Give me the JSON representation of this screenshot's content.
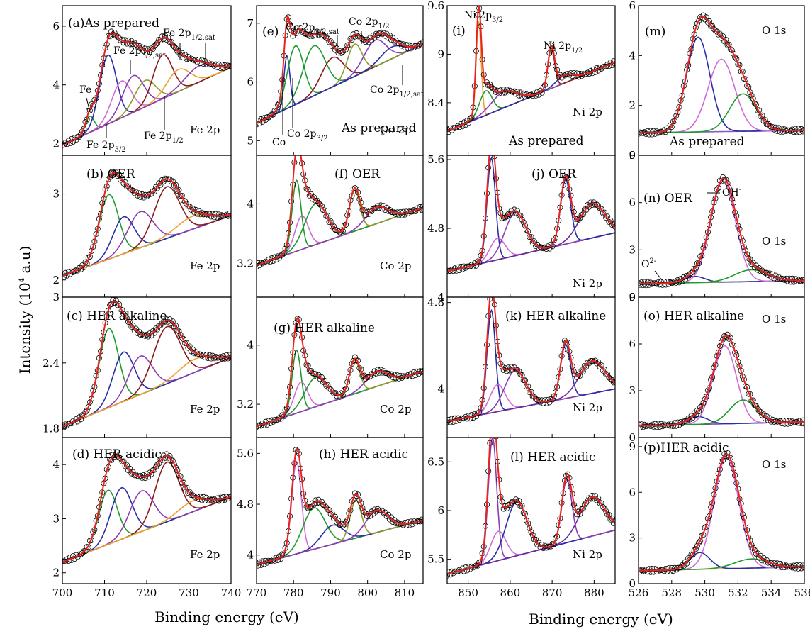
{
  "figure": {
    "ylabel": "Intensity (10",
    "ylabel_sup": "4",
    "ylabel_tail": " a.u)",
    "xlabel_left": "Binding energy (eV)",
    "xlabel_right": "Binding energy (eV)"
  },
  "colors": {
    "data": "#000000",
    "fit": "#e8231f",
    "background": [
      "#f5a623",
      "#3b3fae",
      "#8b5cc2",
      "#6b8e3d",
      "#7a3fb0"
    ],
    "components": [
      "#1f9a2e",
      "#2a2ea6",
      "#8a3db3",
      "#8b1a1a",
      "#f0a030",
      "#d06bd6",
      "#8f9a2a",
      "#6a2b9a"
    ]
  },
  "chart_data": [
    {
      "id": "a",
      "type": "line",
      "title": "(a)As prepared",
      "element": "Fe 2p",
      "xlim": [
        700,
        740
      ],
      "ylim": [
        1.6,
        6.7
      ],
      "xticks": [
        700,
        710,
        720,
        730,
        740
      ],
      "yticks": [
        2,
        4,
        6
      ],
      "baseline": [
        1.95,
        4.6
      ],
      "peaks": [
        {
          "c": 706.5,
          "a": 0.55,
          "w": 1.0
        },
        {
          "c": 710.8,
          "a": 2.35,
          "w": 2.0
        },
        {
          "c": 714.0,
          "a": 1.25,
          "w": 2.3
        },
        {
          "c": 716.8,
          "a": 1.25,
          "w": 2.5
        },
        {
          "c": 719.6,
          "a": 0.9,
          "w": 2.5
        },
        {
          "c": 723.8,
          "a": 1.5,
          "w": 2.3
        },
        {
          "c": 727.5,
          "a": 0.75,
          "w": 2.8
        },
        {
          "c": 732.5,
          "a": 0.55,
          "w": 3.5
        }
      ],
      "colors": [
        0,
        1,
        5,
        2,
        6,
        3,
        4,
        2
      ]
    },
    {
      "id": "b",
      "type": "line",
      "title": "(b) OER",
      "element": "Fe 2p",
      "xlim": [
        700,
        740
      ],
      "ylim": [
        1.8,
        3.45
      ],
      "xticks": [
        700,
        710,
        720,
        730,
        740
      ],
      "yticks": [
        2,
        3
      ],
      "baseline": [
        2.05,
        2.75
      ],
      "peaks": [
        {
          "c": 711.0,
          "a": 0.75,
          "w": 2.3
        },
        {
          "c": 714.5,
          "a": 0.43,
          "w": 2.5
        },
        {
          "c": 718.5,
          "a": 0.42,
          "w": 3.0
        },
        {
          "c": 724.8,
          "a": 0.6,
          "w": 3.0
        },
        {
          "c": 731.0,
          "a": 0.15,
          "w": 4.0
        }
      ],
      "colors": [
        0,
        1,
        2,
        3,
        4
      ]
    },
    {
      "id": "c",
      "type": "line",
      "title": "(c) HER alkaline",
      "element": "Fe 2p",
      "xlim": [
        700,
        740
      ],
      "ylim": [
        1.72,
        3.0
      ],
      "xticks": [
        700,
        710,
        720,
        730,
        740
      ],
      "yticks": [
        1.8,
        2.4,
        3.0
      ],
      "baseline": [
        1.82,
        2.45
      ],
      "peaks": [
        {
          "c": 711.0,
          "a": 0.72,
          "w": 2.3
        },
        {
          "c": 714.5,
          "a": 0.45,
          "w": 2.5
        },
        {
          "c": 718.5,
          "a": 0.35,
          "w": 2.8
        },
        {
          "c": 724.8,
          "a": 0.52,
          "w": 3.2
        },
        {
          "c": 731.5,
          "a": 0.12,
          "w": 4.0
        }
      ],
      "colors": [
        0,
        1,
        2,
        3,
        4
      ]
    },
    {
      "id": "d",
      "type": "line",
      "title": "(d) HER acidic",
      "element": "Fe 2p",
      "xlim": [
        700,
        740
      ],
      "ylim": [
        1.8,
        4.5
      ],
      "xticks": [
        700,
        710,
        720,
        730,
        740
      ],
      "yticks": [
        2,
        3,
        4
      ],
      "baseline": [
        2.2,
        3.4
      ],
      "peaks": [
        {
          "c": 710.8,
          "a": 1.0,
          "w": 2.2
        },
        {
          "c": 714.0,
          "a": 0.95,
          "w": 2.5
        },
        {
          "c": 718.8,
          "a": 0.75,
          "w": 2.8
        },
        {
          "c": 724.8,
          "a": 1.1,
          "w": 2.8
        },
        {
          "c": 731.0,
          "a": 0.2,
          "w": 3.5
        }
      ],
      "colors": [
        0,
        1,
        2,
        3,
        4
      ]
    },
    {
      "id": "e",
      "type": "line",
      "title": "(e)",
      "element": "Co 2p",
      "xlim": [
        770,
        815
      ],
      "ylim": [
        4.75,
        7.3
      ],
      "xticks": [
        770,
        780,
        790,
        800,
        810
      ],
      "yticks": [
        5,
        6,
        7
      ],
      "baseline": [
        5.3,
        6.65
      ],
      "peaks": [
        {
          "c": 778.2,
          "a": 0.9,
          "w": 0.8
        },
        {
          "c": 780.5,
          "a": 1.0,
          "w": 2.2
        },
        {
          "c": 785.5,
          "a": 0.85,
          "w": 3.0
        },
        {
          "c": 790.5,
          "a": 0.5,
          "w": 3.0
        },
        {
          "c": 796.5,
          "a": 0.55,
          "w": 2.0
        },
        {
          "c": 802.0,
          "a": 0.45,
          "w": 3.0
        },
        {
          "c": 806.5,
          "a": 0.2,
          "w": 3.0
        }
      ],
      "colors": [
        1,
        0,
        0,
        3,
        6,
        2,
        1
      ]
    },
    {
      "id": "f",
      "type": "line",
      "title": "(f) OER",
      "element": "Co 2p",
      "xlim": [
        770,
        815
      ],
      "ylim": [
        2.75,
        4.65
      ],
      "xticks": [
        770,
        780,
        790,
        800,
        810
      ],
      "yticks": [
        3.2,
        4.0
      ],
      "baseline": [
        3.18,
        3.95
      ],
      "peaks": [
        {
          "c": 780.8,
          "a": 0.95,
          "w": 1.2
        },
        {
          "c": 782.2,
          "a": 0.45,
          "w": 1.8
        },
        {
          "c": 786.0,
          "a": 0.55,
          "w": 3.0
        },
        {
          "c": 796.5,
          "a": 0.55,
          "w": 1.4
        },
        {
          "c": 802.5,
          "a": 0.22,
          "w": 3.0
        }
      ],
      "colors": [
        0,
        5,
        0,
        6,
        2
      ]
    },
    {
      "id": "g",
      "type": "line",
      "title": "(g) HER alkaline",
      "element": "Co 2p",
      "xlim": [
        770,
        815
      ],
      "ylim": [
        2.75,
        4.65
      ],
      "xticks": [
        770,
        780,
        790,
        800,
        810
      ],
      "yticks": [
        3.2,
        4.0
      ],
      "baseline": [
        2.9,
        3.65
      ],
      "peaks": [
        {
          "c": 780.8,
          "a": 0.85,
          "w": 1.2
        },
        {
          "c": 782.0,
          "a": 0.4,
          "w": 1.8
        },
        {
          "c": 786.0,
          "a": 0.4,
          "w": 3.0
        },
        {
          "c": 796.5,
          "a": 0.45,
          "w": 1.4
        },
        {
          "c": 802.5,
          "a": 0.2,
          "w": 3.0
        }
      ],
      "colors": [
        0,
        5,
        0,
        6,
        2
      ]
    },
    {
      "id": "h",
      "type": "line",
      "title": "(h) HER acidic",
      "element": "Co 2p",
      "xlim": [
        770,
        815
      ],
      "ylim": [
        3.55,
        5.85
      ],
      "xticks": [
        770,
        780,
        790,
        800,
        810
      ],
      "yticks": [
        4.0,
        4.8,
        5.6
      ],
      "baseline": [
        3.85,
        4.55
      ],
      "peaks": [
        {
          "c": 780.8,
          "a": 1.45,
          "w": 1.3
        },
        {
          "c": 785.5,
          "a": 0.65,
          "w": 3.0
        },
        {
          "c": 790.5,
          "a": 0.3,
          "w": 3.0
        },
        {
          "c": 796.8,
          "a": 0.6,
          "w": 1.5
        },
        {
          "c": 802.5,
          "a": 0.35,
          "w": 3.0
        }
      ],
      "colors": [
        5,
        0,
        1,
        6,
        2
      ]
    },
    {
      "id": "i",
      "type": "line",
      "title": "(i)",
      "element": "Ni 2p",
      "xlim": [
        845,
        885
      ],
      "ylim": [
        7.75,
        9.6
      ],
      "xticks": [
        850,
        860,
        870,
        880
      ],
      "yticks": [
        8.4,
        9.0,
        9.6
      ],
      "baseline": [
        8.05,
        8.9
      ],
      "peaks": [
        {
          "c": 852.5,
          "a": 1.2,
          "w": 0.6
        },
        {
          "c": 854.2,
          "a": 0.3,
          "w": 1.5
        },
        {
          "c": 858.5,
          "a": 0.2,
          "w": 3.0
        },
        {
          "c": 869.8,
          "a": 0.5,
          "w": 0.8
        },
        {
          "c": 873.0,
          "a": 0.1,
          "w": 2.0
        }
      ],
      "colors": [
        4,
        0,
        2,
        3,
        1
      ]
    },
    {
      "id": "j",
      "type": "line",
      "title": "(j) OER",
      "element": "Ni 2p",
      "xlim": [
        845,
        885
      ],
      "ylim": [
        4.0,
        5.65
      ],
      "xticks": [
        850,
        860,
        870,
        880
      ],
      "yticks": [
        4.0,
        4.8,
        5.6
      ],
      "baseline": [
        4.3,
        4.75
      ],
      "peaks": [
        {
          "c": 855.5,
          "a": 1.2,
          "w": 1.0
        },
        {
          "c": 857.0,
          "a": 0.25,
          "w": 1.8
        },
        {
          "c": 861.2,
          "a": 0.5,
          "w": 2.5
        },
        {
          "c": 873.2,
          "a": 0.75,
          "w": 1.2
        },
        {
          "c": 879.5,
          "a": 0.4,
          "w": 3.0
        }
      ],
      "colors": [
        1,
        5,
        2,
        1,
        7
      ]
    },
    {
      "id": "k",
      "type": "line",
      "title": "(k) HER alkaline",
      "element": "Ni 2p",
      "xlim": [
        845,
        885
      ],
      "ylim": [
        3.55,
        4.85
      ],
      "xticks": [
        850,
        860,
        870,
        880
      ],
      "yticks": [
        4.0,
        4.8
      ],
      "baseline": [
        3.7,
        4.0
      ],
      "peaks": [
        {
          "c": 855.5,
          "a": 0.95,
          "w": 1.0
        },
        {
          "c": 857.0,
          "a": 0.25,
          "w": 1.8
        },
        {
          "c": 861.2,
          "a": 0.35,
          "w": 2.5
        },
        {
          "c": 873.2,
          "a": 0.5,
          "w": 1.2
        },
        {
          "c": 879.5,
          "a": 0.3,
          "w": 3.0
        }
      ],
      "colors": [
        1,
        5,
        2,
        1,
        7
      ]
    },
    {
      "id": "l",
      "type": "line",
      "title": "(l) HER acidic",
      "element": "Ni 2p",
      "xlim": [
        845,
        885
      ],
      "ylim": [
        5.25,
        6.75
      ],
      "xticks": [
        850,
        860,
        870,
        880
      ],
      "yticks": [
        5.5,
        6.0,
        6.5
      ],
      "baseline": [
        5.35,
        5.8
      ],
      "peaks": [
        {
          "c": 855.8,
          "a": 1.28,
          "w": 1.0
        },
        {
          "c": 857.2,
          "a": 0.3,
          "w": 1.8
        },
        {
          "c": 861.5,
          "a": 0.55,
          "w": 2.5
        },
        {
          "c": 873.5,
          "a": 0.65,
          "w": 1.2
        },
        {
          "c": 879.5,
          "a": 0.4,
          "w": 3.0
        }
      ],
      "colors": [
        2,
        5,
        1,
        2,
        7
      ]
    },
    {
      "id": "m",
      "type": "line",
      "title": "(m)",
      "element": "O 1s",
      "xlim": [
        526,
        536
      ],
      "ylim": [
        0,
        6
      ],
      "xticks": [
        526,
        528,
        530,
        532,
        534,
        536
      ],
      "yticks": [
        0,
        2,
        4,
        6
      ],
      "baseline": [
        0.9,
        1.0
      ],
      "peaks": [
        {
          "c": 529.6,
          "a": 3.8,
          "w": 0.7
        },
        {
          "c": 531.0,
          "a": 2.9,
          "w": 0.8
        },
        {
          "c": 532.3,
          "a": 1.5,
          "w": 0.8
        }
      ],
      "colors": [
        1,
        5,
        0
      ]
    },
    {
      "id": "n",
      "type": "line",
      "title": "(n) OER",
      "element": "O 1s",
      "xlim": [
        526,
        536
      ],
      "ylim": [
        0,
        9
      ],
      "xticks": [
        526,
        528,
        530,
        532,
        534,
        536
      ],
      "yticks": [
        0,
        3,
        6,
        9
      ],
      "baseline": [
        0.85,
        1.05
      ],
      "peaks": [
        {
          "c": 529.4,
          "a": 0.4,
          "w": 0.6
        },
        {
          "c": 531.1,
          "a": 6.4,
          "w": 0.75
        },
        {
          "c": 532.8,
          "a": 0.75,
          "w": 1.0
        }
      ],
      "colors": [
        1,
        5,
        0
      ]
    },
    {
      "id": "o",
      "type": "line",
      "title": "(o) HER alkaline",
      "element": "O 1s",
      "xlim": [
        526,
        536
      ],
      "ylim": [
        0,
        9
      ],
      "xticks": [
        526,
        528,
        530,
        532,
        534,
        536
      ],
      "yticks": [
        0,
        3,
        6,
        9
      ],
      "baseline": [
        0.75,
        1.0
      ],
      "peaks": [
        {
          "c": 529.6,
          "a": 0.5,
          "w": 0.6
        },
        {
          "c": 531.2,
          "a": 5.0,
          "w": 0.7
        },
        {
          "c": 532.3,
          "a": 1.5,
          "w": 0.8
        }
      ],
      "colors": [
        1,
        5,
        0
      ]
    },
    {
      "id": "p",
      "type": "line",
      "title": "(p)HER acidic",
      "element": "O 1s",
      "xlim": [
        526,
        536
      ],
      "ylim": [
        0,
        9.6
      ],
      "xticks": [
        526,
        528,
        530,
        532,
        534,
        536
      ],
      "yticks": [
        0,
        3,
        6,
        9
      ],
      "baseline": [
        0.85,
        1.1
      ],
      "peaks": [
        {
          "c": 529.7,
          "a": 1.1,
          "w": 0.6
        },
        {
          "c": 531.3,
          "a": 7.3,
          "w": 0.75
        },
        {
          "c": 532.8,
          "a": 0.6,
          "w": 1.0
        }
      ],
      "colors": [
        1,
        5,
        0
      ]
    }
  ],
  "annotations": {
    "a": [
      "Fe",
      "Fe 2p",
      "3/2,sat",
      "Fe 2p",
      "1/2,sat",
      "Fe 2p",
      "3/2",
      "Fe 2p",
      "1/2"
    ],
    "e": [
      "Co 2p",
      "3/2,sat",
      "Co 2p",
      "1/2",
      "Co 2p",
      "1/2,sat",
      "Co",
      "Co 2p",
      "3/2",
      "As prepared"
    ],
    "i": [
      "Ni 2p",
      "3/2",
      "Ni 2p",
      "1/2",
      "As prepared"
    ],
    "m": [
      "As prepared"
    ],
    "n": [
      "OH",
      "-",
      "O",
      "2-"
    ]
  }
}
